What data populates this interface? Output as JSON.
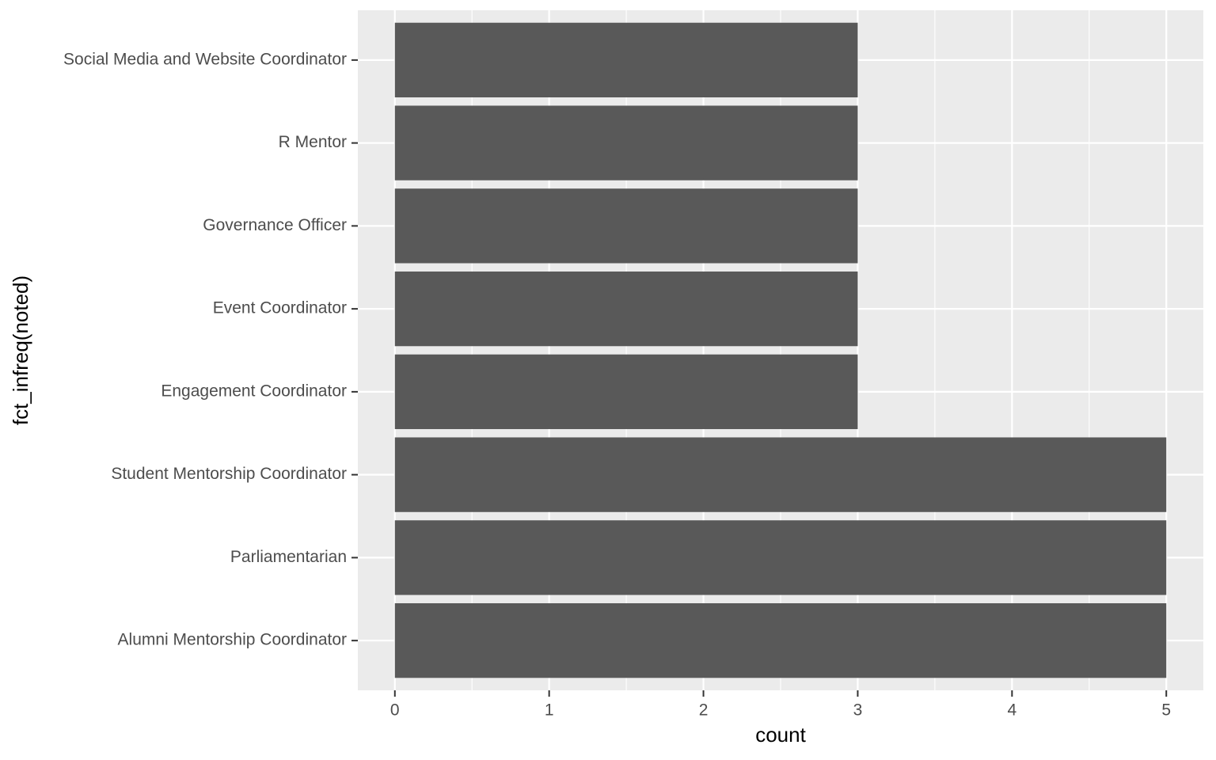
{
  "chart_data": {
    "type": "bar",
    "orientation": "horizontal",
    "categories": [
      "Alumni Mentorship Coordinator",
      "Parliamentarian",
      "Student Mentorship Coordinator",
      "Engagement Coordinator",
      "Event Coordinator",
      "Governance Officer ",
      "R Mentor",
      "Social Media and Website Coordinator"
    ],
    "values": [
      5,
      5,
      5,
      3,
      3,
      3,
      3,
      3
    ],
    "xlabel": "count",
    "ylabel": "fct_infreq(noted)",
    "xlim": [
      -0.24,
      5.24
    ],
    "x_ticks": [
      0,
      1,
      2,
      3,
      4,
      5
    ],
    "x_tick_labels": [
      "0",
      "1",
      "2",
      "3",
      "4",
      "5"
    ],
    "grid": true,
    "colors": {
      "bar": "#595959",
      "panel_background": "#ebebeb",
      "grid_line": "#ffffff",
      "tick_label": "#4d4d4d",
      "tick_mark": "#333333",
      "axis_title": "#000000"
    }
  }
}
